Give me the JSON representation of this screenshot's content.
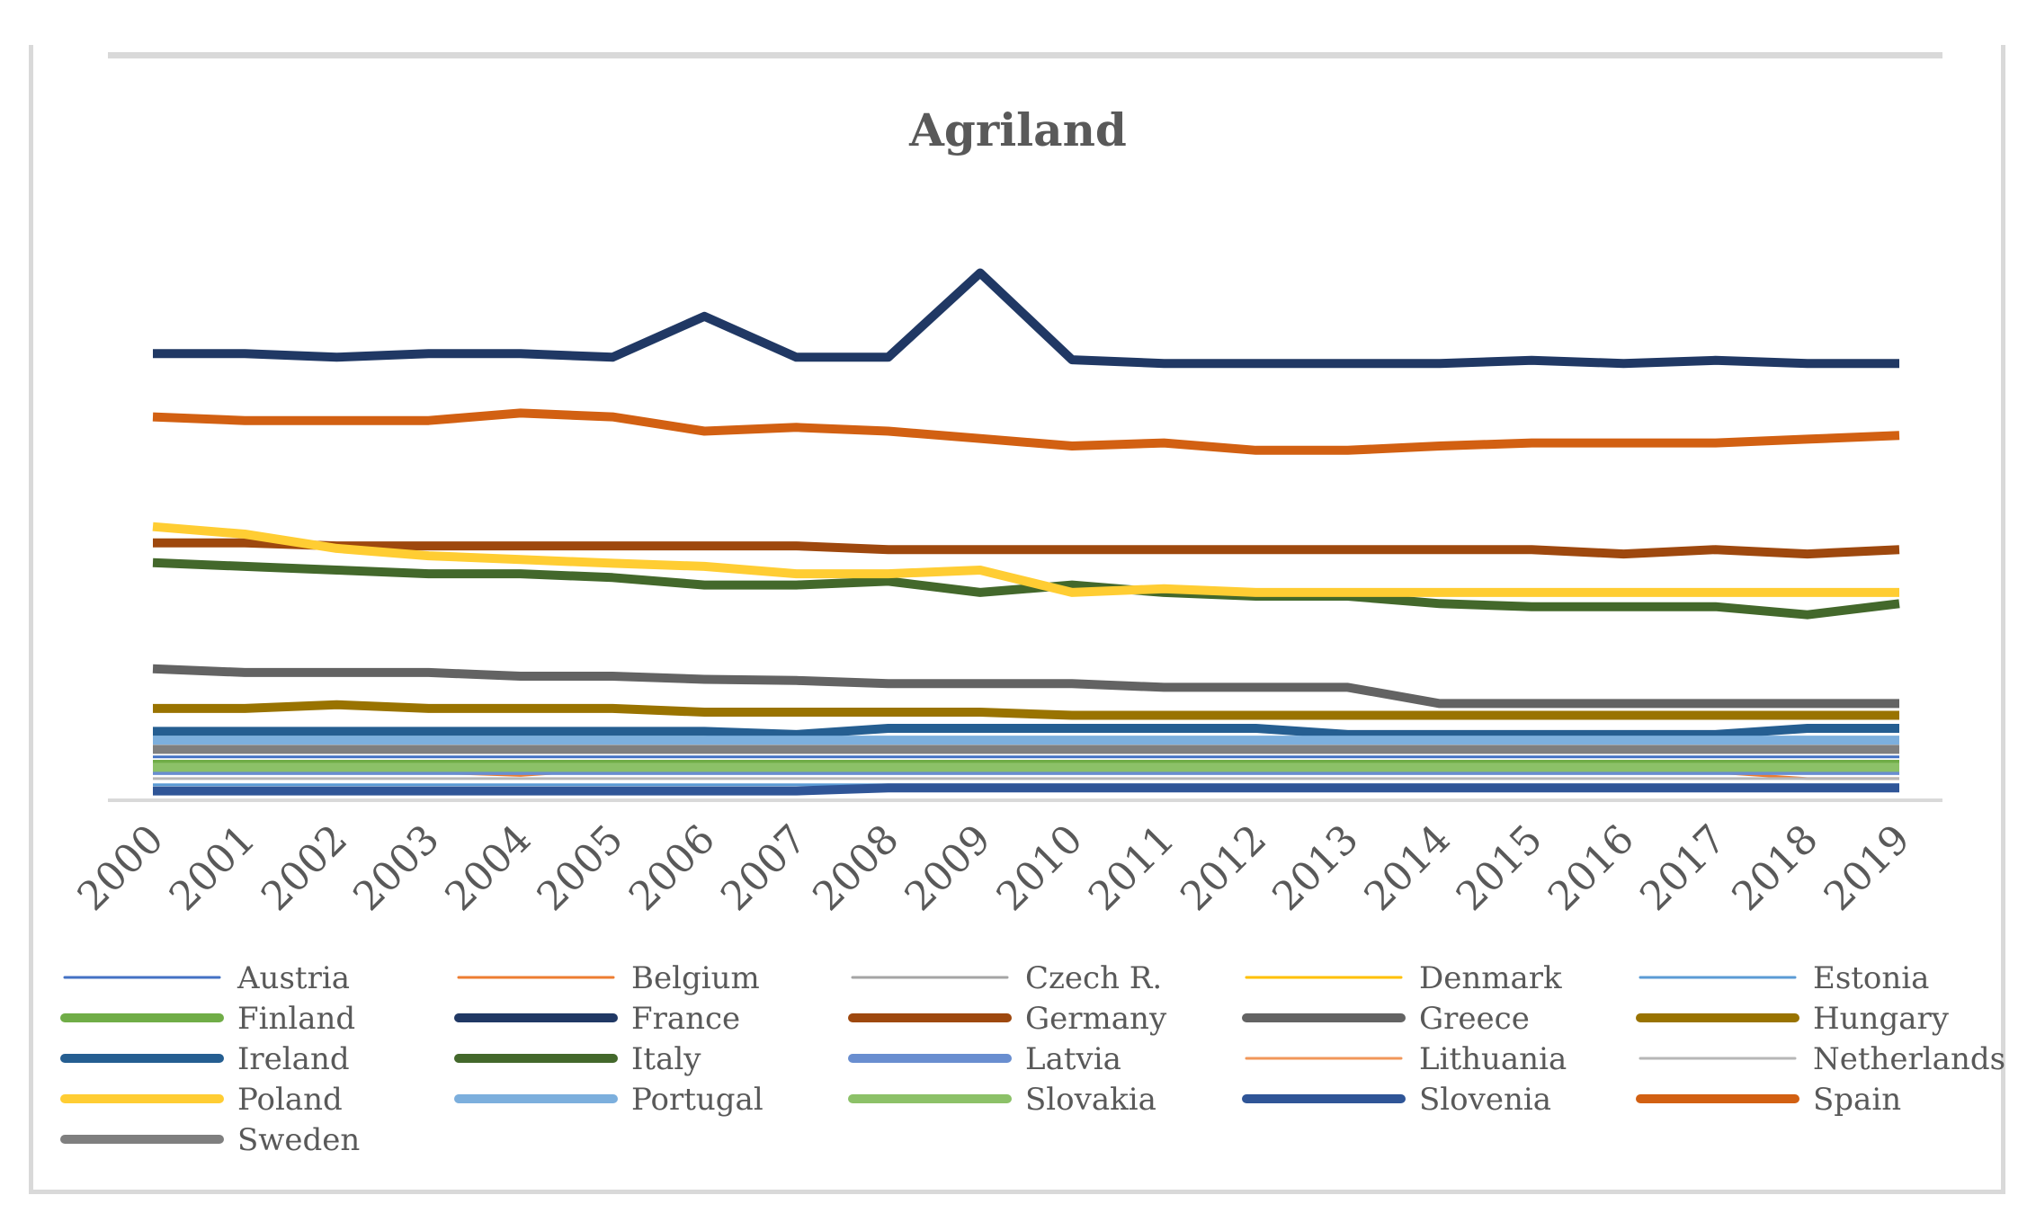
{
  "chart_data": {
    "type": "line",
    "title": "Agriland",
    "xlabel": "",
    "ylabel": "",
    "ylim": [
      0,
      100
    ],
    "categories": [
      "2000",
      "2001",
      "2002",
      "2003",
      "2004",
      "2005",
      "2006",
      "2007",
      "2008",
      "2009",
      "2010",
      "2011",
      "2012",
      "2013",
      "2014",
      "2015",
      "2016",
      "2017",
      "2018",
      "2019"
    ],
    "series": [
      {
        "name": "Austria",
        "color": "#4472C4",
        "width": 3,
        "values": [
          7,
          7,
          7,
          7,
          7,
          7,
          7,
          7,
          7,
          7,
          7,
          7,
          7,
          7,
          7,
          7,
          7,
          7,
          7,
          7
        ]
      },
      {
        "name": "Belgium",
        "color": "#ED7D31",
        "width": 3,
        "values": [
          4.5,
          4.5,
          4.5,
          4.5,
          4,
          5,
          4.5,
          4.5,
          4.5,
          4.5,
          4.5,
          4.5,
          4.5,
          4.5,
          4.5,
          4.5,
          4.5,
          4.5,
          3.5,
          3.5
        ]
      },
      {
        "name": "Czech R.",
        "color": "#A5A5A5",
        "width": 3,
        "values": [
          8,
          8,
          8,
          8,
          8,
          8,
          8,
          8,
          8,
          8,
          8,
          8,
          8,
          8,
          8,
          8,
          8,
          8,
          8,
          8
        ]
      },
      {
        "name": "Denmark",
        "color": "#FFC000",
        "width": 3,
        "values": [
          5,
          5,
          5,
          5,
          5,
          5,
          5,
          5,
          5,
          5,
          5,
          5,
          5,
          5,
          5,
          5,
          5,
          5,
          5,
          5
        ]
      },
      {
        "name": "Estonia",
        "color": "#5B9BD5",
        "width": 3,
        "values": [
          2.5,
          2.5,
          2.5,
          2.5,
          2.5,
          2.5,
          2.5,
          2.5,
          2.5,
          2.5,
          2.5,
          2.5,
          2.5,
          2.5,
          2.5,
          2.5,
          2.5,
          2.5,
          2.5,
          2.5
        ]
      },
      {
        "name": "Finland",
        "color": "#70AD47",
        "width": 10,
        "values": [
          5.8,
          5.8,
          5.8,
          5.8,
          5.8,
          5.8,
          5.8,
          5.8,
          5.8,
          5.8,
          5.8,
          5.8,
          5.8,
          5.8,
          5.8,
          5.8,
          5.8,
          5.8,
          5.8,
          5.8
        ]
      },
      {
        "name": "France",
        "color": "#203864",
        "width": 10,
        "values": [
          72,
          72,
          71.4,
          72,
          72,
          71.4,
          78,
          71.4,
          71.4,
          85,
          71,
          70.4,
          70.4,
          70.4,
          70.4,
          70.9,
          70.4,
          70.9,
          70.4,
          70.4
        ]
      },
      {
        "name": "Germany",
        "color": "#9E480E",
        "width": 10,
        "values": [
          41.5,
          41.5,
          41,
          41,
          41,
          41,
          41,
          41,
          40.4,
          40.4,
          40.4,
          40.4,
          40.4,
          40.4,
          40.4,
          40.4,
          39.7,
          40.4,
          39.7,
          40.4
        ]
      },
      {
        "name": "Greece",
        "color": "#636363",
        "width": 10,
        "values": [
          21.2,
          20.6,
          20.6,
          20.6,
          20,
          20,
          19.5,
          19.3,
          18.8,
          18.8,
          18.8,
          18.2,
          18.2,
          18.2,
          15.6,
          15.6,
          15.6,
          15.6,
          15.6,
          15.6
        ]
      },
      {
        "name": "Hungary",
        "color": "#997300",
        "width": 10,
        "values": [
          14.8,
          14.8,
          15.4,
          14.8,
          14.8,
          14.8,
          14.2,
          14.2,
          14.2,
          14.2,
          13.7,
          13.7,
          13.7,
          13.7,
          13.7,
          13.7,
          13.7,
          13.7,
          13.7,
          13.7
        ]
      },
      {
        "name": "Ireland",
        "color": "#255E91",
        "width": 10,
        "values": [
          11.1,
          11.1,
          11.1,
          11.1,
          11.1,
          11.1,
          11.1,
          10.6,
          11.6,
          11.6,
          11.6,
          11.6,
          11.6,
          10.6,
          10.6,
          10.6,
          10.6,
          10.6,
          11.6,
          11.6
        ]
      },
      {
        "name": "Italy",
        "color": "#43682B",
        "width": 10,
        "values": [
          38.3,
          37.7,
          37.1,
          36.5,
          36.5,
          35.9,
          34.7,
          34.7,
          35.3,
          33.5,
          34.7,
          33.5,
          32.9,
          32.9,
          31.7,
          31.2,
          31.2,
          31.2,
          29.9,
          31.7
        ]
      },
      {
        "name": "Latvia",
        "color": "#698ED0",
        "width": 10,
        "values": [
          4.8,
          4.8,
          4.8,
          4.8,
          4.8,
          4.8,
          4.8,
          4.8,
          4.8,
          4.8,
          4.8,
          4.8,
          4.8,
          4.8,
          4.8,
          4.8,
          4.8,
          4.8,
          4.8,
          4.8
        ]
      },
      {
        "name": "Lithuania",
        "color": "#F1975A",
        "width": 3,
        "values": [
          6.2,
          6.2,
          6.2,
          6.2,
          6.2,
          6.2,
          6.2,
          6.2,
          6.2,
          6.2,
          6.2,
          6.2,
          6.2,
          6.2,
          6.2,
          6.2,
          6.2,
          6.2,
          6.2,
          6.2
        ]
      },
      {
        "name": "Netherlands",
        "color": "#B7B7B7",
        "width": 3,
        "values": [
          3.5,
          3.5,
          3.5,
          3.5,
          3.5,
          3.5,
          3.5,
          3.5,
          3.5,
          3.5,
          3.5,
          3.5,
          3.5,
          3.5,
          3.5,
          3.5,
          3.5,
          3.5,
          3.5,
          3.5
        ]
      },
      {
        "name": "Poland",
        "color": "#FFCD33",
        "width": 10,
        "values": [
          44.1,
          42.9,
          40.6,
          39.4,
          38.8,
          38.2,
          37.7,
          36.5,
          36.5,
          37.1,
          33.5,
          34.1,
          33.5,
          33.5,
          33.5,
          33.5,
          33.5,
          33.5,
          33.5,
          33.5
        ]
      },
      {
        "name": "Portugal",
        "color": "#7CAFDD",
        "width": 10,
        "values": [
          9.7,
          9.7,
          9.7,
          9.7,
          9.7,
          9.7,
          9.7,
          9.7,
          9.7,
          9.7,
          9.7,
          9.7,
          9.7,
          9.7,
          9.7,
          9.7,
          9.7,
          9.7,
          9.7,
          9.7
        ]
      },
      {
        "name": "Slovakia",
        "color": "#8CC168",
        "width": 10,
        "values": [
          5.3,
          5.3,
          5.3,
          5.3,
          5.3,
          5.3,
          5.3,
          5.3,
          5.3,
          5.3,
          5.3,
          5.3,
          5.3,
          5.3,
          5.3,
          5.3,
          5.3,
          5.3,
          5.3,
          5.3
        ]
      },
      {
        "name": "Slovenia",
        "color": "#2F5597",
        "width": 10,
        "values": [
          1.5,
          1.5,
          1.5,
          1.5,
          1.5,
          1.5,
          1.5,
          1.5,
          2,
          2,
          2,
          2,
          2,
          2,
          2,
          2,
          2,
          2,
          2,
          2
        ]
      },
      {
        "name": "Spain",
        "color": "#D26012",
        "width": 10,
        "values": [
          61.8,
          61.2,
          61.2,
          61.2,
          62.4,
          61.8,
          59.5,
          60.1,
          59.5,
          58.3,
          57.1,
          57.6,
          56.4,
          56.4,
          57.1,
          57.6,
          57.6,
          57.6,
          58.2,
          58.8
        ]
      },
      {
        "name": "Sweden",
        "color": "#7F7F7F",
        "width": 10,
        "values": [
          8.2,
          8.2,
          8.2,
          8.2,
          8.2,
          8.2,
          8.2,
          8.2,
          8.2,
          8.2,
          8.2,
          8.2,
          8.2,
          8.2,
          8.2,
          8.2,
          8.2,
          8.2,
          8.2,
          8.2
        ]
      }
    ]
  }
}
